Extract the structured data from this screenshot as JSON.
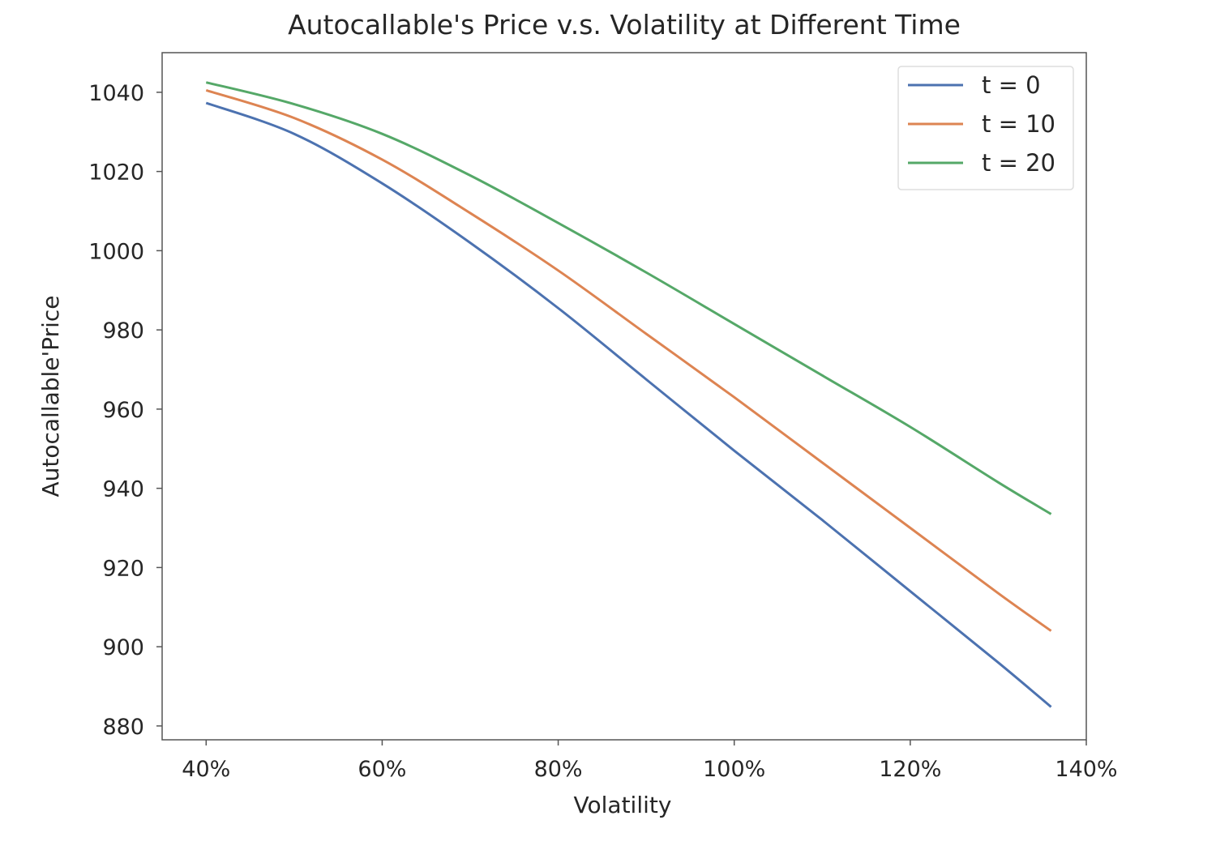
{
  "chart_data": {
    "type": "line",
    "title": "Autocallable's Price v.s. Volatility at Different Time",
    "xlabel": "Volatility",
    "ylabel": "Autocallable'Price",
    "xlim": [
      35,
      140
    ],
    "ylim": [
      876.5,
      1050
    ],
    "x_ticks": [
      40,
      60,
      80,
      100,
      120,
      140
    ],
    "x_tick_labels": [
      "40%",
      "60%",
      "80%",
      "100%",
      "120%",
      "140%"
    ],
    "y_ticks": [
      880,
      900,
      920,
      940,
      960,
      980,
      1000,
      1020,
      1040
    ],
    "y_tick_labels": [
      "880",
      "900",
      "920",
      "940",
      "960",
      "980",
      "1000",
      "1020",
      "1040"
    ],
    "grid": false,
    "legend_position": "top-right",
    "x": [
      40,
      50,
      60,
      70,
      80,
      90,
      100,
      110,
      120,
      130,
      136
    ],
    "series": [
      {
        "name": "t = 0",
        "color": "#4c72b0",
        "values": [
          1037.3,
          1029.5,
          1017,
          1002,
          985.5,
          967.5,
          949.5,
          932,
          914,
          896,
          884.8
        ]
      },
      {
        "name": "t = 10",
        "color": "#dd8452",
        "values": [
          1040.5,
          1033.5,
          1023,
          1009.5,
          995,
          979,
          963,
          946.5,
          930,
          913.5,
          904
        ]
      },
      {
        "name": "t = 20",
        "color": "#55a868",
        "values": [
          1042.5,
          1037,
          1029.5,
          1019,
          1007,
          994.5,
          981.5,
          968.5,
          955.5,
          941.5,
          933.5
        ]
      }
    ]
  }
}
